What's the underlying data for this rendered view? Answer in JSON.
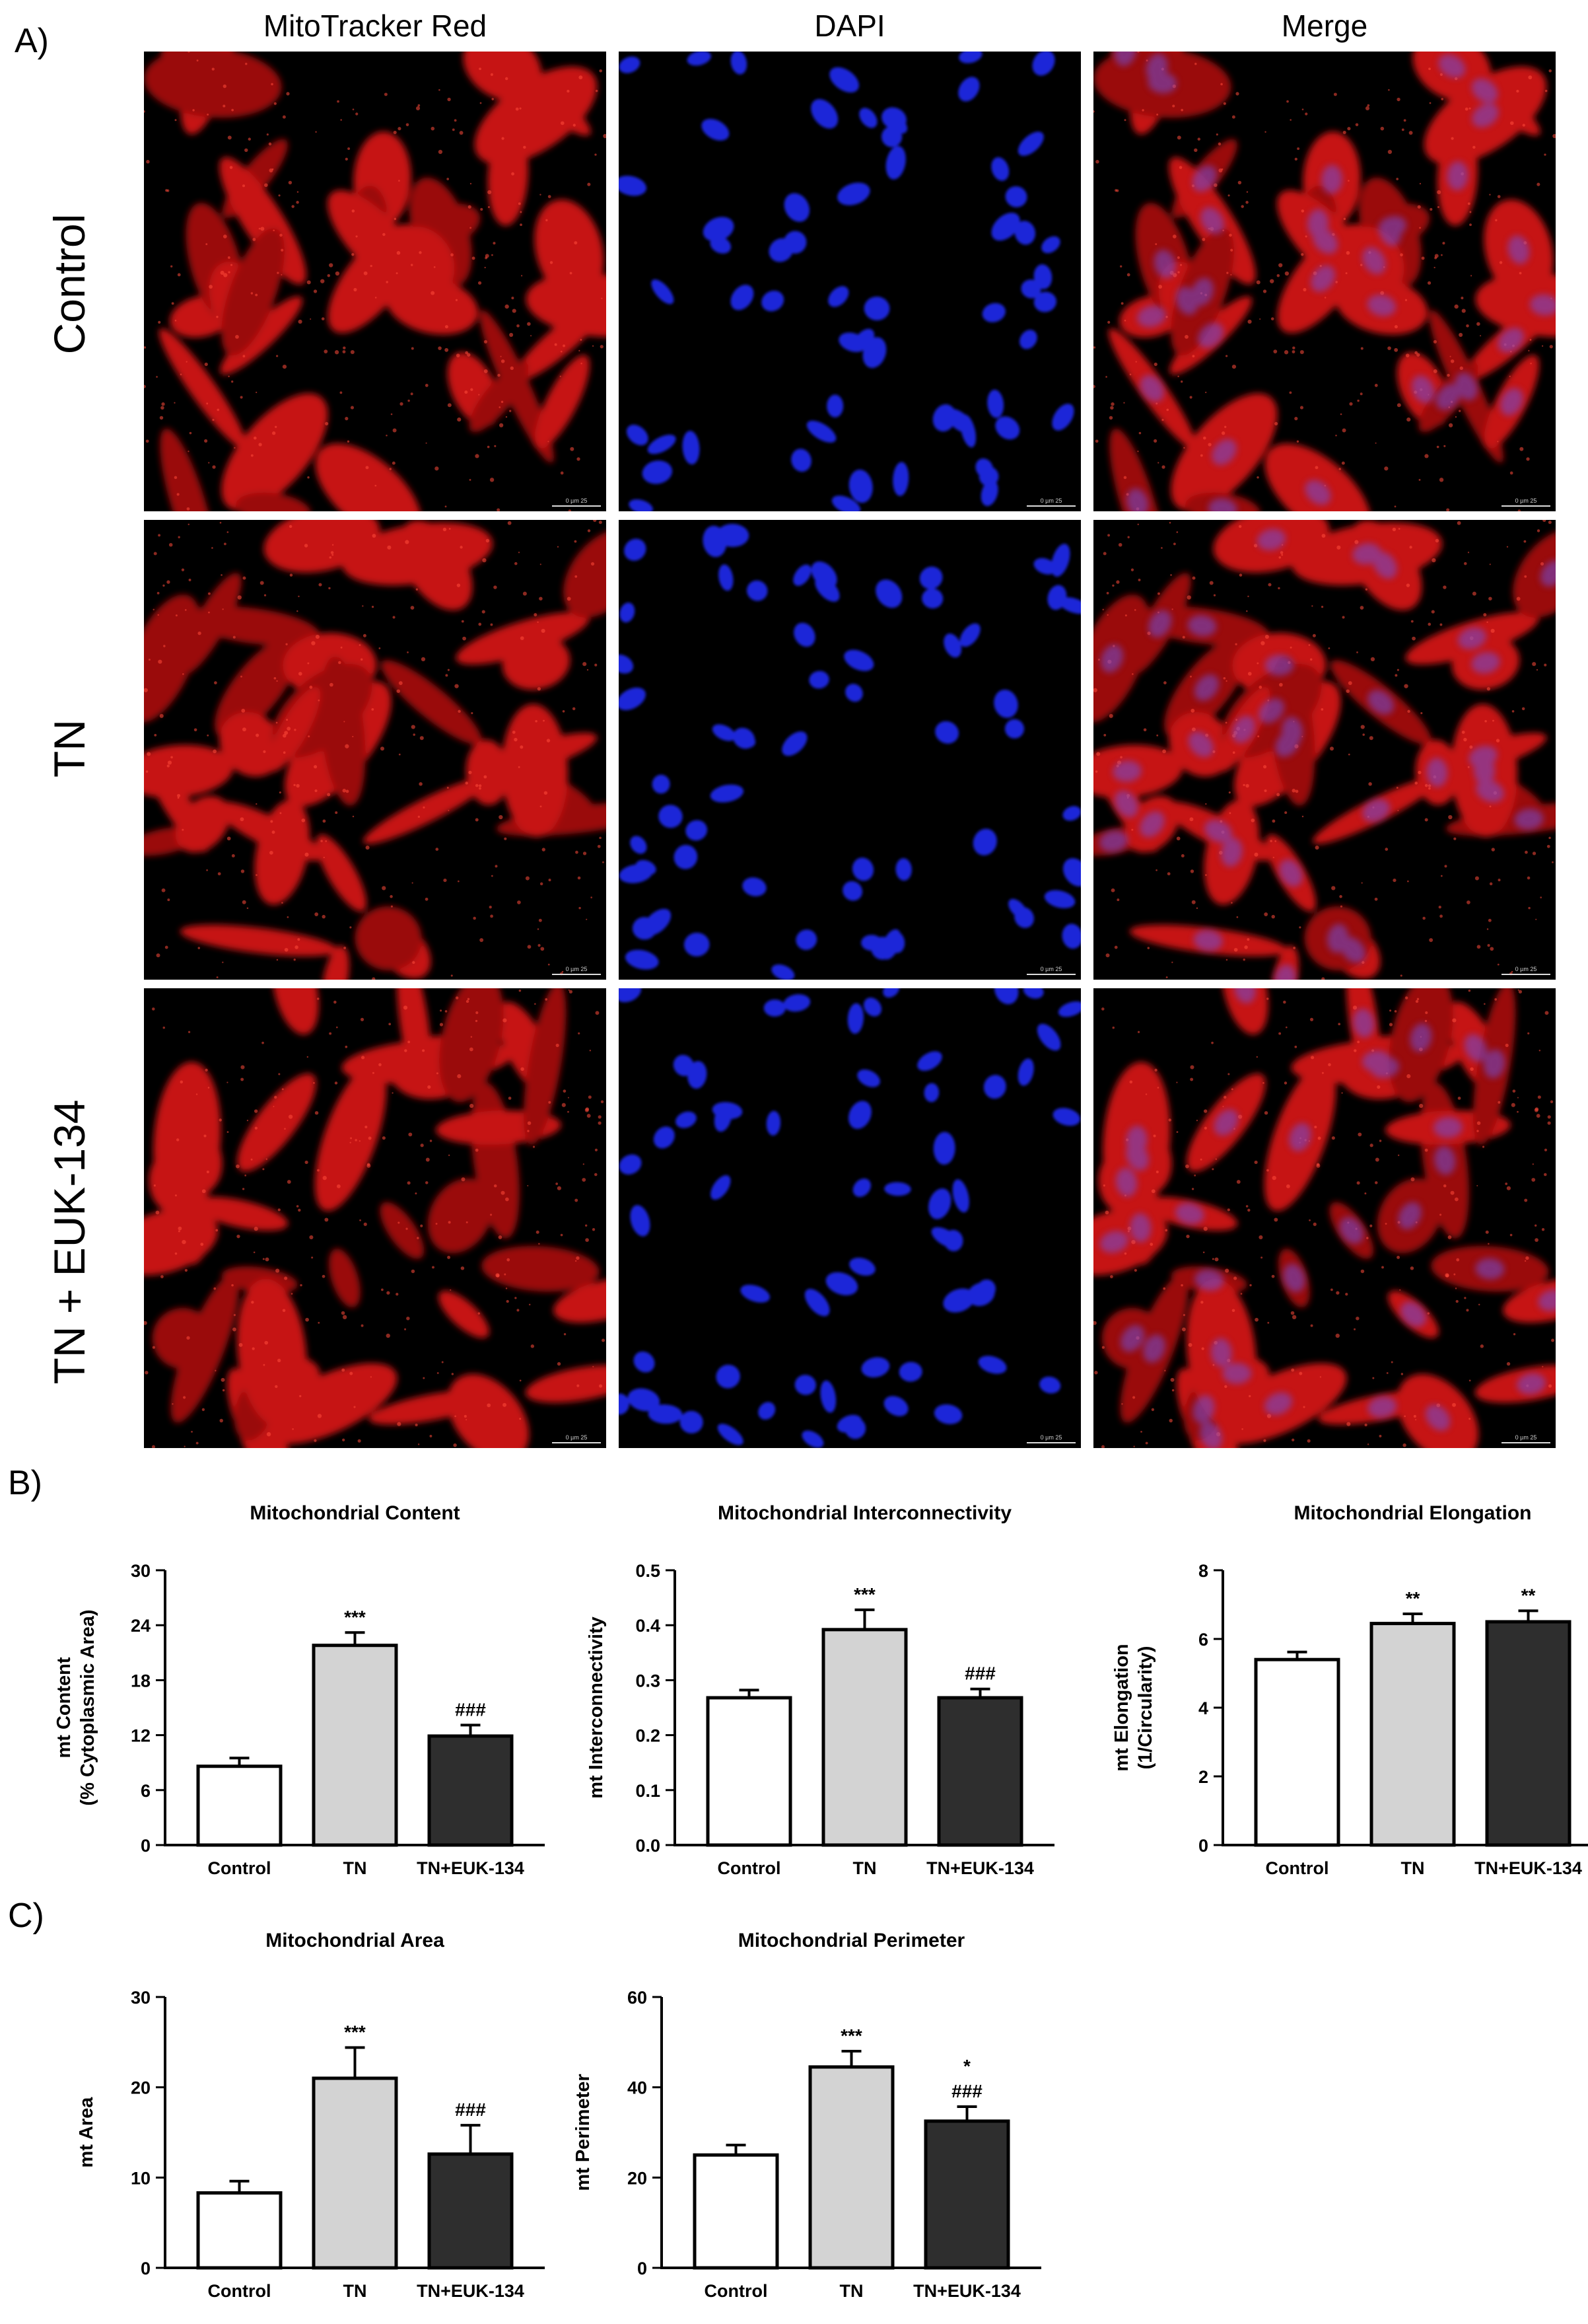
{
  "panels": {
    "a": "A)",
    "b": "B)",
    "c": "C)"
  },
  "columns": [
    "MitoTracker Red",
    "DAPI",
    "Merge"
  ],
  "rows": [
    "Control",
    "TN",
    "TN + EUK-134"
  ],
  "scale_bar": "0   µm   25",
  "colors": {
    "mito": "#d81414",
    "dapi": "#1c25d8",
    "bar_control": "#ffffff",
    "bar_tn": "#d3d3d3",
    "bar_euk": "#2e2e2e"
  },
  "chart_data": [
    {
      "type": "bar",
      "title": "Mitochondrial Content",
      "ylabel": [
        "mt Content",
        "(% Cytoplasmic Area)"
      ],
      "categories": [
        "Control",
        "TN",
        "TN+EUK-134"
      ],
      "values": [
        8.6,
        21.8,
        11.9
      ],
      "errors": [
        0.9,
        1.4,
        1.2
      ],
      "annotations": [
        [],
        [
          "***"
        ],
        [
          "###"
        ]
      ],
      "ylim": [
        0,
        30
      ],
      "yticks": [
        "0",
        "6",
        "12",
        "18",
        "24",
        "30"
      ]
    },
    {
      "type": "bar",
      "title": "Mitochondrial Interconnectivity",
      "ylabel": [
        "mt Interconnectivity"
      ],
      "categories": [
        "Control",
        "TN",
        "TN+EUK-134"
      ],
      "values": [
        0.268,
        0.392,
        0.268
      ],
      "errors": [
        0.014,
        0.036,
        0.016
      ],
      "annotations": [
        [],
        [
          "***"
        ],
        [
          "###"
        ]
      ],
      "ylim": [
        0,
        0.5
      ],
      "yticks": [
        "0.0",
        "0.1",
        "0.2",
        "0.3",
        "0.4",
        "0.5"
      ]
    },
    {
      "type": "bar",
      "title": "Mitochondrial Elongation",
      "ylabel": [
        "mt Elongation",
        "(1/Circularity)"
      ],
      "categories": [
        "Control",
        "TN",
        "TN+EUK-134"
      ],
      "values": [
        5.4,
        6.45,
        6.5
      ],
      "errors": [
        0.22,
        0.28,
        0.32
      ],
      "annotations": [
        [],
        [
          "**"
        ],
        [
          "**"
        ]
      ],
      "ylim": [
        0,
        8
      ],
      "yticks": [
        "0",
        "2",
        "4",
        "6",
        "8"
      ]
    },
    {
      "type": "bar",
      "title": "Mitochondrial Area",
      "ylabel": [
        "mt Area"
      ],
      "categories": [
        "Control",
        "TN",
        "TN+EUK-134"
      ],
      "values": [
        8.3,
        21.0,
        12.6
      ],
      "errors": [
        1.3,
        3.4,
        3.2
      ],
      "annotations": [
        [],
        [
          "***"
        ],
        [
          "###"
        ]
      ],
      "ylim": [
        0,
        30
      ],
      "yticks": [
        "0",
        "10",
        "20",
        "30"
      ]
    },
    {
      "type": "bar",
      "title": "Mitochondrial Perimeter",
      "ylabel": [
        "mt Perimeter"
      ],
      "categories": [
        "Control",
        "TN",
        "TN+EUK-134"
      ],
      "values": [
        25.0,
        44.5,
        32.5
      ],
      "errors": [
        2.2,
        3.5,
        3.2
      ],
      "annotations": [
        [],
        [
          "***"
        ],
        [
          "*",
          "###"
        ]
      ],
      "ylim": [
        0,
        60
      ],
      "yticks": [
        "0",
        "20",
        "40",
        "60"
      ]
    }
  ]
}
